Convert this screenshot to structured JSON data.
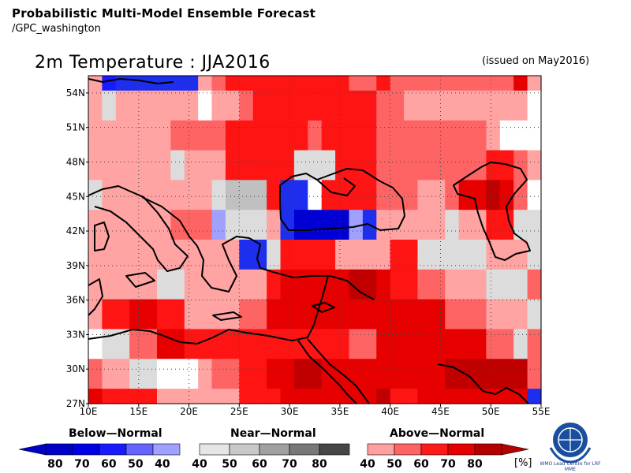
{
  "header": {
    "title": "Probabilistic Multi-Model Ensemble Forecast",
    "source": "/GPC_washington"
  },
  "map": {
    "title": "2m Temperature : JJA2016",
    "issued": "(issued on May2016)",
    "lat_labels": [
      "54N",
      "51N",
      "48N",
      "45N",
      "42N",
      "39N",
      "36N",
      "33N",
      "30N",
      "27N"
    ],
    "lon_labels": [
      "10E",
      "15E",
      "20E",
      "25E",
      "30E",
      "35E",
      "40E",
      "45E",
      "50E",
      "55E"
    ],
    "grid_lon_start": 10,
    "grid_lon_end": 55,
    "grid_lat_start": 27,
    "grid_lat_end": 55.5,
    "codes_legend": {
      "W": "white/no signal",
      "B1": "below 40",
      "B2": "below 50",
      "B3": "below 60",
      "B4": "below 70",
      "N1": "near 40",
      "N2": "near 50",
      "A1": "above 40",
      "A2": "above 50",
      "A3": "above 60",
      "A4": "above 70",
      "A5": "above 80"
    },
    "cells": [
      [
        "A1",
        "B3",
        "B4",
        "B4",
        "B4",
        "B4",
        "B4",
        "B4",
        "A1",
        "A2",
        "A3",
        "A3",
        "A3",
        "A3",
        "A3",
        "A3",
        "A3",
        "A3",
        "A3",
        "A2",
        "A2",
        "A3",
        "A2",
        "A2",
        "A2",
        "A2",
        "A2",
        "A2",
        "A2",
        "A2",
        "A2",
        "A4",
        "A1"
      ],
      [
        "A1",
        "N1",
        "A1",
        "A1",
        "A1",
        "A1",
        "A1",
        "A1",
        "W",
        "A1",
        "A1",
        "A2",
        "A3",
        "A3",
        "A3",
        "A3",
        "A3",
        "A3",
        "A3",
        "A3",
        "A3",
        "A2",
        "A2",
        "A1",
        "A1",
        "A1",
        "A1",
        "A1",
        "A1",
        "A1",
        "A1",
        "A1",
        "W"
      ],
      [
        "A1",
        "N1",
        "A1",
        "A1",
        "A1",
        "A1",
        "A1",
        "A1",
        "W",
        "A1",
        "A1",
        "A2",
        "A3",
        "A3",
        "A3",
        "A3",
        "A3",
        "A3",
        "A3",
        "A3",
        "A3",
        "A2",
        "A2",
        "A1",
        "A1",
        "A1",
        "A1",
        "A1",
        "A1",
        "A1",
        "A1",
        "A1",
        "W"
      ],
      [
        "A1",
        "A1",
        "A1",
        "A1",
        "A1",
        "A1",
        "A2",
        "A2",
        "A2",
        "A2",
        "A3",
        "A3",
        "A3",
        "A3",
        "A3",
        "A3",
        "A2",
        "A3",
        "A3",
        "A3",
        "A3",
        "A2",
        "A2",
        "A2",
        "A2",
        "A2",
        "A2",
        "A2",
        "A2",
        "A1",
        "W",
        "W",
        "W"
      ],
      [
        "A1",
        "A1",
        "A1",
        "A1",
        "A1",
        "A1",
        "A2",
        "A2",
        "A2",
        "A2",
        "A3",
        "A3",
        "A3",
        "A3",
        "A3",
        "A3",
        "A2",
        "A3",
        "A3",
        "A3",
        "A3",
        "A2",
        "A2",
        "A2",
        "A2",
        "A2",
        "A2",
        "A2",
        "A2",
        "A1",
        "W",
        "W",
        "W"
      ],
      [
        "A1",
        "A1",
        "A1",
        "A1",
        "A1",
        "A1",
        "N1",
        "A1",
        "A1",
        "A1",
        "A3",
        "A3",
        "A3",
        "A3",
        "A3",
        "N1",
        "N1",
        "N1",
        "A3",
        "A3",
        "A3",
        "A2",
        "A2",
        "A2",
        "A2",
        "A2",
        "A2",
        "A2",
        "A2",
        "A3",
        "A3",
        "A2",
        "A1"
      ],
      [
        "A1",
        "A1",
        "A1",
        "A1",
        "A1",
        "A1",
        "N1",
        "A1",
        "A1",
        "A1",
        "A3",
        "A3",
        "A3",
        "A3",
        "A3",
        "N1",
        "N1",
        "N1",
        "A3",
        "A3",
        "A3",
        "A2",
        "A2",
        "A2",
        "A2",
        "A2",
        "A2",
        "A2",
        "A2",
        "A3",
        "A3",
        "A2",
        "A1"
      ],
      [
        "N1",
        "A1",
        "A1",
        "A1",
        "A1",
        "A1",
        "A1",
        "A1",
        "A1",
        "N1",
        "N2",
        "N2",
        "N2",
        "A3",
        "B4",
        "B4",
        "W",
        "A3",
        "A3",
        "A3",
        "A3",
        "A2",
        "A2",
        "A2",
        "A1",
        "A1",
        "A2",
        "A4",
        "A4",
        "A5",
        "A4",
        "A2",
        "W"
      ],
      [
        "N1",
        "A1",
        "A1",
        "A1",
        "A1",
        "A1",
        "A1",
        "A1",
        "A1",
        "N1",
        "N2",
        "N2",
        "N2",
        "A3",
        "B4",
        "B4",
        "W",
        "A3",
        "A3",
        "A3",
        "A3",
        "A2",
        "A2",
        "A2",
        "A1",
        "A1",
        "A2",
        "A4",
        "A4",
        "A5",
        "A4",
        "A2",
        "W"
      ],
      [
        "A1",
        "A1",
        "A1",
        "A1",
        "A1",
        "A1",
        "A2",
        "A2",
        "A2",
        "B1",
        "N1",
        "N1",
        "N1",
        "A1",
        "B4",
        "B5",
        "B5",
        "B5",
        "B5",
        "B1",
        "B4",
        "A1",
        "A1",
        "A1",
        "A1",
        "A1",
        "N1",
        "A1",
        "A1",
        "A3",
        "A3",
        "N1",
        "N1"
      ],
      [
        "A1",
        "A1",
        "A1",
        "A1",
        "A1",
        "A1",
        "A2",
        "A2",
        "A2",
        "B1",
        "N1",
        "N1",
        "N1",
        "A1",
        "B4",
        "B5",
        "B5",
        "B5",
        "B5",
        "B1",
        "B4",
        "A1",
        "A1",
        "A1",
        "A1",
        "A1",
        "N1",
        "A1",
        "A1",
        "A3",
        "A3",
        "N1",
        "N1"
      ],
      [
        "A1",
        "A1",
        "A1",
        "A1",
        "A1",
        "A1",
        "A1",
        "A1",
        "A1",
        "A1",
        "A1",
        "B4",
        "B4",
        "N1",
        "A3",
        "A3",
        "A3",
        "A3",
        "A1",
        "A1",
        "A1",
        "A1",
        "A3",
        "A3",
        "N1",
        "N1",
        "N1",
        "N1",
        "N1",
        "A1",
        "A1",
        "A1",
        "N1"
      ],
      [
        "A1",
        "A1",
        "A1",
        "A1",
        "A1",
        "A1",
        "A1",
        "A1",
        "A1",
        "A1",
        "A1",
        "B4",
        "B4",
        "N1",
        "A3",
        "A3",
        "A3",
        "A3",
        "A1",
        "A1",
        "A1",
        "A1",
        "A3",
        "A3",
        "N1",
        "N1",
        "N1",
        "N1",
        "N1",
        "A1",
        "A1",
        "A1",
        "N1"
      ],
      [
        "A1",
        "A1",
        "A1",
        "A1",
        "A1",
        "N1",
        "N1",
        "A1",
        "A1",
        "A1",
        "A1",
        "A1",
        "A1",
        "A3",
        "A4",
        "A4",
        "A4",
        "A4",
        "A4",
        "A5",
        "A5",
        "A4",
        "A3",
        "A3",
        "A2",
        "A2",
        "A1",
        "A1",
        "A1",
        "N1",
        "N1",
        "N1",
        "A2"
      ],
      [
        "A1",
        "A1",
        "A1",
        "A1",
        "A1",
        "N1",
        "N1",
        "A1",
        "A1",
        "A1",
        "A1",
        "A1",
        "A1",
        "A3",
        "A4",
        "A4",
        "A4",
        "A4",
        "A4",
        "A5",
        "A5",
        "A4",
        "A3",
        "A3",
        "A2",
        "A2",
        "A1",
        "A1",
        "A1",
        "N1",
        "N1",
        "N1",
        "A2"
      ],
      [
        "A1",
        "A3",
        "A3",
        "A4",
        "A4",
        "A3",
        "A3",
        "A1",
        "A1",
        "A1",
        "A1",
        "A2",
        "A2",
        "A4",
        "A4",
        "A4",
        "A4",
        "A4",
        "A4",
        "A4",
        "A4",
        "A4",
        "A4",
        "A4",
        "A4",
        "A4",
        "A2",
        "A2",
        "A2",
        "A1",
        "A1",
        "A1",
        "N1"
      ],
      [
        "A1",
        "A3",
        "A3",
        "A4",
        "A4",
        "A3",
        "A3",
        "A1",
        "A1",
        "A1",
        "A1",
        "A2",
        "A2",
        "A4",
        "A4",
        "A4",
        "A4",
        "A4",
        "A4",
        "A4",
        "A4",
        "A4",
        "A4",
        "A4",
        "A4",
        "A4",
        "A2",
        "A2",
        "A2",
        "A1",
        "A1",
        "A1",
        "N1"
      ],
      [
        "W",
        "N1",
        "N1",
        "A2",
        "A2",
        "A4",
        "A4",
        "A3",
        "A3",
        "A3",
        "A3",
        "A3",
        "A3",
        "A3",
        "A3",
        "A3",
        "A3",
        "A3",
        "A3",
        "A2",
        "A2",
        "A4",
        "A4",
        "A4",
        "A4",
        "A4",
        "A4",
        "A4",
        "A4",
        "A2",
        "A2",
        "N1",
        "A2"
      ],
      [
        "W",
        "N1",
        "N1",
        "A2",
        "A2",
        "A4",
        "A4",
        "A3",
        "A3",
        "A3",
        "A3",
        "A3",
        "A3",
        "A3",
        "A3",
        "A3",
        "A3",
        "A3",
        "A3",
        "A2",
        "A2",
        "A4",
        "A4",
        "A4",
        "A4",
        "A4",
        "A4",
        "A4",
        "A4",
        "A2",
        "A2",
        "N1",
        "A2"
      ],
      [
        "A2",
        "A1",
        "A1",
        "N1",
        "N1",
        "W",
        "W",
        "W",
        "A1",
        "A2",
        "A2",
        "A3",
        "A3",
        "A4",
        "A4",
        "A5",
        "A5",
        "A4",
        "A4",
        "A4",
        "A4",
        "A4",
        "A4",
        "A4",
        "A4",
        "A4",
        "A5",
        "A5",
        "A5",
        "A5",
        "A5",
        "A5",
        "A2"
      ],
      [
        "A2",
        "A1",
        "A1",
        "N1",
        "N1",
        "W",
        "W",
        "W",
        "A1",
        "A2",
        "A2",
        "A3",
        "A3",
        "A4",
        "A4",
        "A5",
        "A5",
        "A4",
        "A4",
        "A4",
        "A4",
        "A4",
        "A4",
        "A4",
        "A4",
        "A4",
        "A5",
        "A5",
        "A5",
        "A5",
        "A5",
        "A5",
        "A2"
      ],
      [
        "A4",
        "A3",
        "A3",
        "A3",
        "A3",
        "A1",
        "A1",
        "A1",
        "A1",
        "A1",
        "A1",
        "A3",
        "A3",
        "A3",
        "A4",
        "A4",
        "A4",
        "A4",
        "A4",
        "A4",
        "A4",
        "A5",
        "A3",
        "A3",
        "A4",
        "A4",
        "A4",
        "A4",
        "A4",
        "A4",
        "A4",
        "A4",
        "B4"
      ]
    ]
  },
  "legend": {
    "below": {
      "label": "Below—Normal",
      "ticks": [
        "80",
        "70",
        "60",
        "50",
        "40"
      ],
      "colors": [
        "#0000c8",
        "#0000e6",
        "#1a1aff",
        "#6464ff",
        "#a0a0ff"
      ]
    },
    "near": {
      "label": "Near—Normal",
      "ticks": [
        "40",
        "50",
        "60",
        "70",
        "80"
      ],
      "colors": [
        "#e6e6e6",
        "#c8c8c8",
        "#a0a0a0",
        "#787878",
        "#464646"
      ]
    },
    "above": {
      "label": "Above—Normal",
      "ticks": [
        "40",
        "50",
        "60",
        "70",
        "80"
      ],
      "colors": [
        "#ffa0a0",
        "#ff6464",
        "#ff1a1a",
        "#e60000",
        "#b40000"
      ],
      "unit": "[%]"
    }
  },
  "colors": {
    "W": "#ffffff",
    "B1": "#a0a0ff",
    "B2": "#6464ff",
    "B3": "#1a1aff",
    "B4": "#1e2eee",
    "B5": "#0000d2",
    "N1": "#dcdcdc",
    "N2": "#c0c0c0",
    "A1": "#ffa3a3",
    "A2": "#ff6464",
    "A3": "#ff1414",
    "A4": "#e60000",
    "A5": "#c00000"
  },
  "logo": {
    "text": "WMO Lead Centre for LRF MME"
  }
}
